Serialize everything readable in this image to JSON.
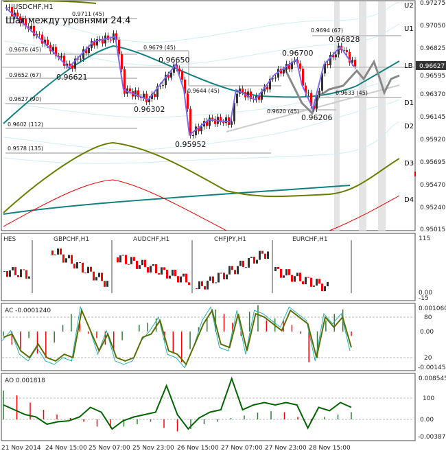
{
  "window": {
    "symbol_label": "USDCHF,H1",
    "step_label": "Шаг между уровнями 24.4"
  },
  "colors": {
    "bear": "#ff0000",
    "bull": "#333333",
    "ma_teal": "#118080",
    "ma_olive": "#6b7d00",
    "zigzag": "#7b68ee",
    "band": "#bfe6ef",
    "ac_line": "#5a6e00",
    "ac_signal": "#20b2b2",
    "ao_line": "#006400"
  },
  "main": {
    "price_axis": [
      "0.97275",
      "0.97050",
      "0.96825",
      "0.96595",
      "0.96370",
      "0.96145",
      "0.95920",
      "0.95695",
      "0.95470",
      "0.95240",
      "0.95015"
    ],
    "current_price": "0.96627",
    "zones": [
      "U2",
      "U1",
      "LB",
      "D1",
      "D2",
      "D3",
      "D4"
    ],
    "level_labels": [
      "0.9711 (45)",
      "0.9676 (45)",
      "0.9652 (67)",
      "0.9627 (90)",
      "0.9602 (112)",
      "0.9578 (135)",
      "0.9679 (45)",
      "0.9644 (45)",
      "0.9694 (67)",
      "0.9620 (45)",
      "0.9633 (45)"
    ],
    "pivot_labels": [
      "0.96621",
      "0.96650",
      "0.96302",
      "0.95952",
      "0.96700",
      "0.96206",
      "0.96828"
    ]
  },
  "subcharts": {
    "titles": [
      "HES",
      "GBPCHF,H1",
      "AUDCHF,H1",
      "CHFJPY,H1",
      "EURCHF,H1"
    ],
    "axis": [
      "115",
      "0.00",
      "-15"
    ]
  },
  "ac": {
    "label": "AC -0.0001240",
    "axis": [
      "0.001060",
      "80",
      "0.00",
      "20",
      "-0.001458"
    ]
  },
  "ao": {
    "label": "AO 0.001818",
    "axis": [
      "0.008545",
      "100",
      "0.00",
      "-0.003873"
    ]
  },
  "time_axis": [
    "21 Nov 2014",
    "24 Nov 15:00",
    "25 Nov 07:00",
    "25 Nov 23:00",
    "26 Nov 15:00",
    "27 Nov 07:00",
    "27 Nov 23:00",
    "28 Nov 15:00"
  ],
  "chart_data": [
    {
      "type": "line",
      "title": "USDCHF,H1",
      "ylim": [
        0.95015,
        0.97275
      ],
      "pivots_x_bar": [
        0,
        13,
        23,
        32,
        40,
        43,
        52,
        62,
        65,
        67,
        74,
        82,
        84,
        91,
        98,
        106,
        108,
        112,
        116,
        122,
        127
      ],
      "pivots_price": [
        0.9722,
        0.969,
        0.9662,
        0.9688,
        0.9693,
        0.964,
        0.963,
        0.9665,
        0.964,
        0.9595,
        0.961,
        0.9608,
        0.964,
        0.963,
        0.9655,
        0.967,
        0.9645,
        0.9621,
        0.9665,
        0.9683,
        0.9663
      ]
    },
    {
      "type": "bar",
      "title": "AC",
      "unit": "1e-4",
      "values": [
        -2,
        -6,
        -9,
        -3,
        -10,
        -12,
        -5,
        3,
        8,
        5,
        -1,
        -3,
        -6,
        -8,
        -4,
        0,
        3,
        4,
        6,
        -4,
        -10,
        -14,
        -8,
        2,
        6,
        10,
        8,
        4,
        -2,
        9,
        12,
        5,
        6,
        5,
        3,
        -1,
        -14,
        -12,
        5,
        8,
        10,
        -2
      ],
      "oscillator": [
        50,
        55,
        30,
        20,
        40,
        20,
        15,
        25,
        20,
        90,
        60,
        30,
        55,
        20,
        15,
        20,
        50,
        55,
        75,
        30,
        25,
        10,
        40,
        70,
        90,
        40,
        35,
        85,
        30,
        85,
        80,
        70,
        60,
        90,
        80,
        70,
        20,
        80,
        65,
        80,
        35
      ]
    },
    {
      "type": "bar",
      "title": "AO",
      "unit": "1e-3",
      "values": [
        6,
        5,
        3.5,
        2,
        1,
        0.3,
        -0.5,
        -1.5,
        -1.8,
        -1.5,
        -1,
        -0.5,
        -1.8,
        -2.5,
        -2,
        -1,
        -0.5,
        0.3,
        0.8,
        1.4,
        1.7,
        1.5,
        0.5,
        -0.5,
        0.5,
        1,
        1.5
      ],
      "line": [
        3,
        2,
        1,
        0.5,
        -1,
        -0.5,
        -0.3,
        0.5,
        2.5,
        1.5,
        -2,
        -0.3,
        0.5,
        1.0,
        1.5,
        7,
        1,
        -2,
        0.3,
        1.5,
        2,
        8.5,
        2,
        3,
        3.5,
        3,
        3.5,
        3,
        -1.8,
        2.5,
        1.8,
        3.5,
        2.5
      ]
    }
  ]
}
